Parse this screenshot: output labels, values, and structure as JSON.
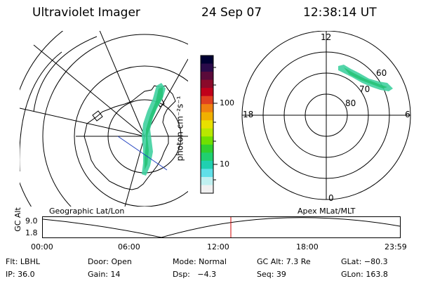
{
  "header": {
    "title": "Ultraviolet Imager",
    "date": "24 Sep 07",
    "time": "12:38:14 UT"
  },
  "colorbar": {
    "unit_label": "photon cm⁻²s⁻¹",
    "ticks": [
      "100",
      "10"
    ],
    "colors": [
      "#000033",
      "#2a0a4a",
      "#5a0a3a",
      "#8a0a2a",
      "#c0001a",
      "#e04020",
      "#f08010",
      "#f0b000",
      "#e8e000",
      "#b8e800",
      "#70e000",
      "#30d030",
      "#20d070",
      "#20d0b0",
      "#60e0e8",
      "#c0f0f0",
      "#f0f0f0"
    ]
  },
  "left_map": {
    "caption": "Geographic Lat/Lon"
  },
  "right_map": {
    "caption": "Apex MLat/MLT",
    "mlt_labels": {
      "top": "12",
      "left": "18",
      "right": "6",
      "bottom": "0"
    },
    "lat_labels": [
      "60",
      "70",
      "80"
    ]
  },
  "timeline": {
    "axis_label": "GC Alt",
    "y_ticks": [
      "9.0",
      "1.8"
    ],
    "x_ticks": [
      "00:00",
      "06:00",
      "12:00",
      "18:00",
      "23:59"
    ],
    "marker_color": "#d00000"
  },
  "status": {
    "row1": [
      {
        "key": "flt",
        "text": "Flt: LBHL"
      },
      {
        "key": "door",
        "text": "Door: Open"
      },
      {
        "key": "mode",
        "text": "Mode: Normal"
      },
      {
        "key": "gcalt",
        "text": "GC Alt: 7.3 Re"
      },
      {
        "key": "glat",
        "text": "GLat: −80.3"
      }
    ],
    "row2": [
      {
        "key": "ip",
        "text": "IP: 36.0"
      },
      {
        "key": "gain",
        "text": "Gain: 14"
      },
      {
        "key": "dsp",
        "text": "Dsp:   −4.3"
      },
      {
        "key": "seq",
        "text": "Seq: 39"
      },
      {
        "key": "glon",
        "text": "GLon: 163.8"
      }
    ]
  }
}
